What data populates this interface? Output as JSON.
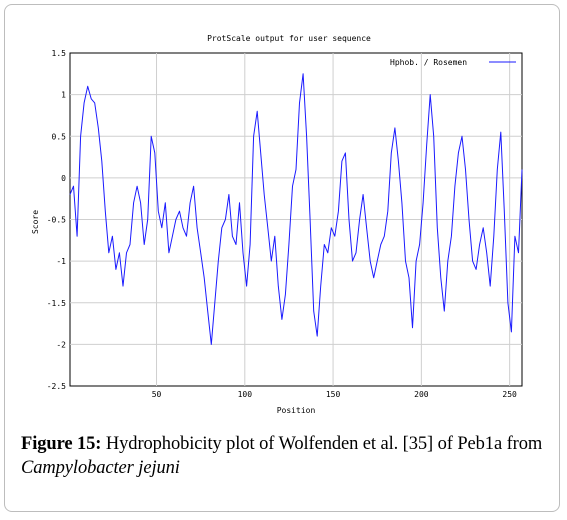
{
  "chart_data": {
    "type": "line",
    "title": "ProtScale output for user sequence",
    "xlabel": "Position",
    "ylabel": "Score",
    "xlim": [
      1,
      257
    ],
    "ylim": [
      -2.5,
      1.5
    ],
    "xticks": [
      50,
      100,
      150,
      200,
      250
    ],
    "xtick_labels": [
      "50",
      "100",
      "150",
      "200",
      "250"
    ],
    "yticks": [
      1.5,
      1,
      0.5,
      0,
      -0.5,
      -1,
      -1.5,
      -2,
      -2.5
    ],
    "ytick_labels": [
      "1.5",
      "1",
      "0.5",
      "0",
      "-0.5",
      "-1",
      "-1.5",
      "-2",
      "-2.5"
    ],
    "grid": true,
    "legend_position": "top-right",
    "series": [
      {
        "name": "Hphob. / Rosemen",
        "color": "#1a1aff",
        "x": [
          1,
          3,
          5,
          7,
          9,
          11,
          13,
          15,
          17,
          19,
          21,
          23,
          25,
          27,
          29,
          31,
          33,
          35,
          37,
          39,
          41,
          43,
          45,
          47,
          49,
          51,
          53,
          55,
          57,
          59,
          61,
          63,
          65,
          67,
          69,
          71,
          73,
          75,
          77,
          79,
          81,
          83,
          85,
          87,
          89,
          91,
          93,
          95,
          97,
          99,
          101,
          103,
          105,
          107,
          109,
          111,
          113,
          115,
          117,
          119,
          121,
          123,
          125,
          127,
          129,
          131,
          133,
          135,
          137,
          139,
          141,
          143,
          145,
          147,
          149,
          151,
          153,
          155,
          157,
          159,
          161,
          163,
          165,
          167,
          169,
          171,
          173,
          175,
          177,
          179,
          181,
          183,
          185,
          187,
          189,
          191,
          193,
          195,
          197,
          199,
          201,
          203,
          205,
          207,
          209,
          211,
          213,
          215,
          217,
          219,
          221,
          223,
          225,
          227,
          229,
          231,
          233,
          235,
          237,
          239,
          241,
          243,
          245,
          247,
          249,
          251,
          253,
          255,
          257
        ],
        "y": [
          -0.2,
          -0.1,
          -0.7,
          0.5,
          0.9,
          1.1,
          0.95,
          0.9,
          0.6,
          0.2,
          -0.4,
          -0.9,
          -0.7,
          -1.1,
          -0.9,
          -1.3,
          -0.9,
          -0.8,
          -0.3,
          -0.1,
          -0.3,
          -0.8,
          -0.5,
          0.5,
          0.3,
          -0.4,
          -0.6,
          -0.3,
          -0.9,
          -0.7,
          -0.5,
          -0.4,
          -0.6,
          -0.7,
          -0.3,
          -0.1,
          -0.6,
          -0.9,
          -1.2,
          -1.6,
          -2.0,
          -1.5,
          -1.0,
          -0.6,
          -0.5,
          -0.2,
          -0.7,
          -0.8,
          -0.3,
          -0.9,
          -1.3,
          -0.8,
          0.5,
          0.8,
          0.3,
          -0.2,
          -0.6,
          -1.0,
          -0.7,
          -1.3,
          -1.7,
          -1.4,
          -0.8,
          -0.1,
          0.1,
          0.9,
          1.25,
          0.5,
          -0.5,
          -1.6,
          -1.9,
          -1.3,
          -0.8,
          -0.9,
          -0.6,
          -0.7,
          -0.4,
          0.2,
          0.3,
          -0.5,
          -1.0,
          -0.9,
          -0.5,
          -0.2,
          -0.6,
          -1.0,
          -1.2,
          -1.0,
          -0.8,
          -0.7,
          -0.4,
          0.3,
          0.6,
          0.2,
          -0.3,
          -1.0,
          -1.2,
          -1.8,
          -1.0,
          -0.8,
          -0.3,
          0.4,
          1.0,
          0.5,
          -0.6,
          -1.2,
          -1.6,
          -1.0,
          -0.7,
          -0.1,
          0.3,
          0.5,
          0.1,
          -0.5,
          -1.0,
          -1.1,
          -0.8,
          -0.6,
          -0.9,
          -1.3,
          -0.7,
          0.1,
          0.55,
          -0.4,
          -1.5,
          -1.85,
          -0.7,
          -0.9,
          0.1
        ]
      }
    ]
  },
  "caption": {
    "label": "Figure 15:",
    "text": " Hydrophobicity plot of Wolfenden et al. [35] of Peb1a from ",
    "organism": "Campylobacter jejuni"
  }
}
